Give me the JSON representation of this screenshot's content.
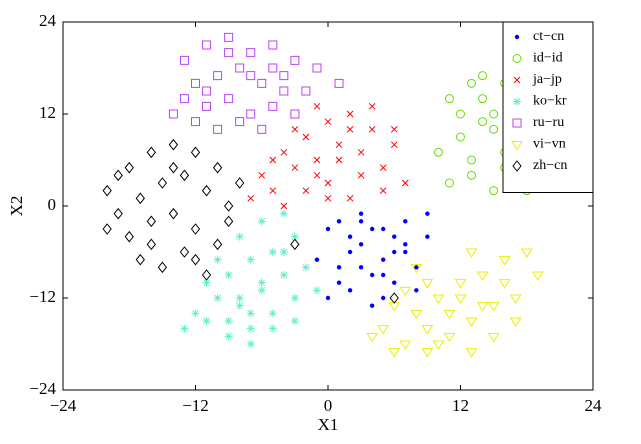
{
  "chart_data": {
    "type": "scatter",
    "x_label": "X1",
    "y_label": "X2",
    "xlim": [
      -24,
      24
    ],
    "ylim": [
      -24,
      24
    ],
    "xticks": [
      {
        "value": -24,
        "label": "−24"
      },
      {
        "value": -12,
        "label": "−12"
      },
      0,
      12,
      24
    ],
    "yticks": [
      {
        "value": -24,
        "label": "−24"
      },
      {
        "value": -12,
        "label": "−12"
      },
      0,
      12,
      24
    ],
    "legend": "northeast",
    "series": [
      {
        "name": "ct−cn",
        "color": "#0000ff",
        "marker": "dot",
        "x": [
          3,
          5,
          1,
          7,
          9,
          2,
          4,
          6,
          0,
          -1,
          8,
          3,
          5,
          2,
          6,
          4,
          1,
          7,
          3,
          9,
          5,
          2,
          0,
          4,
          6,
          8,
          3,
          1,
          5,
          7
        ],
        "y": [
          -5,
          -3,
          -8,
          -2,
          -4,
          -11,
          -9,
          -6,
          -3,
          -7,
          -8,
          -1,
          -12,
          -4,
          -10,
          -13,
          -10,
          -6,
          -2,
          -1,
          -7,
          -6,
          -12,
          -3,
          -4,
          -11,
          -8,
          -2,
          -9,
          -5
        ]
      },
      {
        "name": "id−id",
        "color": "#66dd00",
        "marker": "circle",
        "x": [
          11,
          13,
          15,
          17,
          19,
          21,
          12,
          14,
          16,
          18,
          20,
          11,
          13,
          15,
          17,
          19,
          12,
          14,
          16,
          18,
          20,
          10,
          13,
          15,
          17,
          19,
          14,
          16,
          18,
          21
        ],
        "y": [
          14,
          16,
          12,
          15,
          10,
          6,
          9,
          11,
          7,
          13,
          4,
          3,
          6,
          2,
          8,
          3,
          12,
          14,
          5,
          9,
          8,
          7,
          4,
          10,
          6,
          12,
          17,
          16,
          2,
          9
        ]
      },
      {
        "name": "ja−jp",
        "color": "#ff0000",
        "marker": "x",
        "x": [
          -6,
          -4,
          -2,
          0,
          2,
          4,
          6,
          -5,
          -3,
          -1,
          1,
          3,
          5,
          7,
          -7,
          -4,
          -2,
          0,
          2,
          4,
          -3,
          -1,
          1,
          3,
          5,
          -5,
          0,
          2,
          6,
          -1
        ],
        "y": [
          4,
          7,
          9,
          11,
          12,
          10,
          8,
          2,
          5,
          6,
          8,
          4,
          5,
          3,
          1,
          0,
          2,
          3,
          1,
          13,
          10,
          13,
          6,
          7,
          2,
          6,
          1,
          10,
          10,
          4
        ]
      },
      {
        "name": "ko−kr",
        "color": "#66eecc",
        "marker": "star",
        "x": [
          -11,
          -9,
          -7,
          -5,
          -3,
          -10,
          -8,
          -6,
          -4,
          -2,
          -12,
          -9,
          -7,
          -5,
          -3,
          -11,
          -8,
          -6,
          -4,
          -10,
          -7,
          -5,
          -9,
          -6,
          -3,
          -8,
          -4,
          -1,
          -7,
          -13
        ],
        "y": [
          -15,
          -17,
          -16,
          -14,
          -12,
          -12,
          -13,
          -11,
          -9,
          -8,
          -14,
          -9,
          -7,
          -6,
          -4,
          -10,
          -4,
          -2,
          -1,
          -7,
          -18,
          -16,
          -15,
          -10,
          -15,
          -12,
          -6,
          -11,
          -14,
          -16
        ]
      },
      {
        "name": "ru−ru",
        "color": "#bb44ee",
        "marker": "square",
        "x": [
          -13,
          -11,
          -9,
          -7,
          -5,
          -3,
          -1,
          -12,
          -10,
          -8,
          -6,
          -4,
          -2,
          -13,
          -11,
          -9,
          -7,
          -5,
          -3,
          -12,
          -10,
          -8,
          -6,
          -4,
          -9,
          -7,
          -5,
          -11,
          1,
          -14
        ],
        "y": [
          19,
          21,
          22,
          20,
          21,
          19,
          18,
          16,
          17,
          18,
          16,
          17,
          15,
          14,
          13,
          14,
          12,
          13,
          12,
          11,
          10,
          11,
          10,
          15,
          20,
          17,
          18,
          15,
          16,
          12
        ]
      },
      {
        "name": "vi−vn",
        "color": "#eeee00",
        "marker": "triangle-down",
        "x": [
          5,
          7,
          9,
          11,
          13,
          15,
          17,
          19,
          6,
          8,
          10,
          12,
          14,
          16,
          18,
          4,
          7,
          9,
          11,
          13,
          15,
          17,
          6,
          8,
          10,
          12,
          14,
          16,
          9,
          13
        ],
        "y": [
          -16,
          -18,
          -19,
          -17,
          -15,
          -13,
          -12,
          -9,
          -13,
          -14,
          -12,
          -10,
          -9,
          -7,
          -6,
          -17,
          -11,
          -16,
          -14,
          -19,
          -17,
          -15,
          -19,
          -8,
          -18,
          -12,
          -13,
          -10,
          -10,
          -6
        ]
      },
      {
        "name": "zh−cn",
        "color": "#000000",
        "marker": "diamond",
        "x": [
          -20,
          -18,
          -16,
          -14,
          -12,
          -10,
          -8,
          -19,
          -17,
          -15,
          -13,
          -11,
          -9,
          -20,
          -18,
          -16,
          -14,
          -12,
          -10,
          -17,
          -15,
          -13,
          -11,
          -19,
          -16,
          -14,
          -12,
          -9,
          -3,
          6
        ],
        "y": [
          2,
          5,
          7,
          8,
          7,
          5,
          3,
          -1,
          1,
          3,
          4,
          2,
          0,
          -3,
          -4,
          -2,
          -1,
          -3,
          -5,
          -7,
          -8,
          -6,
          -9,
          4,
          -5,
          5,
          -7,
          -2,
          -5,
          -12
        ]
      }
    ]
  }
}
